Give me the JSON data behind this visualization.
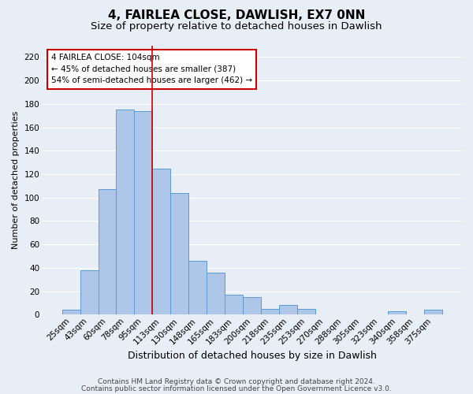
{
  "title": "4, FAIRLEA CLOSE, DAWLISH, EX7 0NN",
  "subtitle": "Size of property relative to detached houses in Dawlish",
  "xlabel": "Distribution of detached houses by size in Dawlish",
  "ylabel": "Number of detached properties",
  "bar_labels": [
    "25sqm",
    "43sqm",
    "60sqm",
    "78sqm",
    "95sqm",
    "113sqm",
    "130sqm",
    "148sqm",
    "165sqm",
    "183sqm",
    "200sqm",
    "218sqm",
    "235sqm",
    "253sqm",
    "270sqm",
    "288sqm",
    "305sqm",
    "323sqm",
    "340sqm",
    "358sqm",
    "375sqm"
  ],
  "bar_heights": [
    4,
    38,
    107,
    175,
    174,
    125,
    104,
    46,
    36,
    17,
    15,
    5,
    8,
    5,
    0,
    0,
    0,
    0,
    3,
    0,
    4
  ],
  "bar_color": "#aec6e8",
  "bar_edgecolor": "#5b9bd5",
  "ylim": [
    0,
    230
  ],
  "yticks": [
    0,
    20,
    40,
    60,
    80,
    100,
    120,
    140,
    160,
    180,
    200,
    220
  ],
  "vline_color": "#cc0000",
  "vline_pos": 4.5,
  "annotation_title": "4 FAIRLEA CLOSE: 104sqm",
  "annotation_line1": "← 45% of detached houses are smaller (387)",
  "annotation_line2": "54% of semi-detached houses are larger (462) →",
  "annotation_box_color": "#ffffff",
  "annotation_box_edgecolor": "#cc0000",
  "footer_line1": "Contains HM Land Registry data © Crown copyright and database right 2024.",
  "footer_line2": "Contains public sector information licensed under the Open Government Licence v3.0.",
  "background_color": "#e8eef5",
  "plot_background": "#e8eef5",
  "grid_color": "#ffffff",
  "title_fontsize": 11,
  "subtitle_fontsize": 9.5,
  "xlabel_fontsize": 9,
  "ylabel_fontsize": 8,
  "tick_fontsize": 7.5,
  "footer_fontsize": 6.5,
  "annotation_fontsize": 7.5
}
